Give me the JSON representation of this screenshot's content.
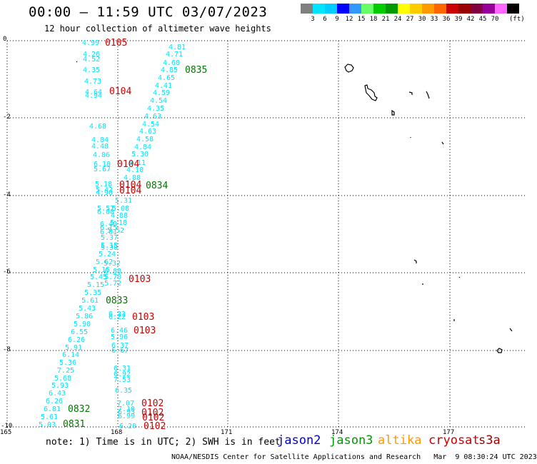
{
  "header": {
    "title": "00:00 – 11:59 UTC 03/07/2023",
    "subtitle": "12 hour collection of altimeter wave heights"
  },
  "colorbar": {
    "colors": [
      "#808080",
      "#00e5ff",
      "#00ccff",
      "#0000ff",
      "#3399ff",
      "#66ff66",
      "#00cc00",
      "#009900",
      "#ffff00",
      "#ffcc00",
      "#ff9900",
      "#ff6600",
      "#cc0000",
      "#990000",
      "#800040",
      "#990099",
      "#ff66ff",
      "#000000"
    ],
    "labels": [
      "3",
      "6",
      "9",
      "12",
      "15",
      "18",
      "21",
      "24",
      "27",
      "30",
      "33",
      "36",
      "39",
      "42",
      "45",
      "70"
    ],
    "unit": "(ft)"
  },
  "map": {
    "y_ticks": [
      "0",
      "-2",
      "-4",
      "-6",
      "-8",
      "-10"
    ],
    "x_ticks": [
      "165",
      "168",
      "171",
      "174",
      "177"
    ],
    "labels": [
      {
        "t": "4.99",
        "x": 115,
        "y": 63,
        "c": "#00e5ff"
      },
      {
        "t": "0105",
        "x": 147,
        "y": 64,
        "c": "#cc0000",
        "big": true
      },
      {
        "t": "4.26",
        "x": 116,
        "y": 79,
        "c": "#00e5ff"
      },
      {
        "t": "4.52",
        "x": 116,
        "y": 86,
        "c": "#00e5ff"
      },
      {
        "t": "4.35",
        "x": 116,
        "y": 101,
        "c": "#00e5ff"
      },
      {
        "t": "4.73",
        "x": 118,
        "y": 117,
        "c": "#00e5ff"
      },
      {
        "t": "4.64",
        "x": 119,
        "y": 132,
        "c": "#00e5ff"
      },
      {
        "t": "4.94",
        "x": 119,
        "y": 137,
        "c": "#00e5ff"
      },
      {
        "t": "0104",
        "x": 153,
        "y": 132,
        "c": "#cc0000",
        "big": true
      },
      {
        "t": "4.81",
        "x": 236,
        "y": 69,
        "c": "#00e5ff"
      },
      {
        "t": "4.71",
        "x": 232,
        "y": 79,
        "c": "#00e5ff"
      },
      {
        "t": "4.60",
        "x": 228,
        "y": 91,
        "c": "#00e5ff"
      },
      {
        "t": "4.85",
        "x": 225,
        "y": 101,
        "c": "#00e5ff"
      },
      {
        "t": "0835",
        "x": 259,
        "y": 102,
        "c": "#007700",
        "big": true
      },
      {
        "t": "4.65",
        "x": 221,
        "y": 112,
        "c": "#00e5ff"
      },
      {
        "t": "4.41",
        "x": 217,
        "y": 123,
        "c": "#00e5ff"
      },
      {
        "t": "4.59",
        "x": 214,
        "y": 133,
        "c": "#00e5ff"
      },
      {
        "t": "4.54",
        "x": 210,
        "y": 144,
        "c": "#00e5ff"
      },
      {
        "t": "4.35",
        "x": 206,
        "y": 155,
        "c": "#00e5ff"
      },
      {
        "t": "4.63",
        "x": 202,
        "y": 166,
        "c": "#00e5ff"
      },
      {
        "t": "4.68",
        "x": 125,
        "y": 180,
        "c": "#00e5ff"
      },
      {
        "t": "4.54",
        "x": 199,
        "y": 177,
        "c": "#00e5ff"
      },
      {
        "t": "4.63",
        "x": 195,
        "y": 187,
        "c": "#00e5ff"
      },
      {
        "t": "4.84",
        "x": 128,
        "y": 199,
        "c": "#00e5ff"
      },
      {
        "t": "4.58",
        "x": 191,
        "y": 198,
        "c": "#00e5ff"
      },
      {
        "t": "4.48",
        "x": 128,
        "y": 208,
        "c": "#00e5ff"
      },
      {
        "t": "4.84",
        "x": 188,
        "y": 209,
        "c": "#00e5ff"
      },
      {
        "t": "4.86",
        "x": 130,
        "y": 220,
        "c": "#00e5ff"
      },
      {
        "t": "5.30",
        "x": 184,
        "y": 219,
        "c": "#00e5ff"
      },
      {
        "t": "6.10",
        "x": 131,
        "y": 233,
        "c": "#00e5ff"
      },
      {
        "t": "6.11",
        "x": 180,
        "y": 231,
        "c": "#00e5ff"
      },
      {
        "t": "0104",
        "x": 164,
        "y": 234,
        "c": "#cc0000",
        "big": true
      },
      {
        "t": "5.67",
        "x": 131,
        "y": 240,
        "c": "#00e5ff"
      },
      {
        "t": "4.10",
        "x": 177,
        "y": 241,
        "c": "#00e5ff"
      },
      {
        "t": "4.88",
        "x": 173,
        "y": 252,
        "c": "#00e5ff"
      },
      {
        "t": "5.18",
        "x": 133,
        "y": 261,
        "c": "#00e5ff"
      },
      {
        "t": "0104",
        "x": 167,
        "y": 263,
        "c": "#cc0000",
        "big": true
      },
      {
        "t": "0834",
        "x": 204,
        "y": 264,
        "c": "#007700",
        "big": true
      },
      {
        "t": "5.42",
        "x": 134,
        "y": 269,
        "c": "#00e5ff"
      },
      {
        "t": "4.90",
        "x": 134,
        "y": 273,
        "c": "#00e5ff"
      },
      {
        "t": "0104",
        "x": 167,
        "y": 271,
        "c": "#cc0000",
        "big": true
      },
      {
        "t": "5.31",
        "x": 161,
        "y": 284,
        "c": "#00e5ff"
      },
      {
        "t": "5.51",
        "x": 136,
        "y": 295,
        "c": "#00e5ff"
      },
      {
        "t": "5.08",
        "x": 157,
        "y": 295,
        "c": "#00e5ff"
      },
      {
        "t": "6.00",
        "x": 136,
        "y": 300,
        "c": "#00e5ff"
      },
      {
        "t": "4.88",
        "x": 155,
        "y": 305,
        "c": "#00e5ff"
      },
      {
        "t": "5.18",
        "x": 154,
        "y": 315,
        "c": "#00e5ff"
      },
      {
        "t": "6.40",
        "x": 140,
        "y": 317,
        "c": "#00e5ff"
      },
      {
        "t": "6.15",
        "x": 140,
        "y": 322,
        "c": "#00e5ff"
      },
      {
        "t": "5.52",
        "x": 150,
        "y": 326,
        "c": "#00e5ff"
      },
      {
        "t": "6.01",
        "x": 140,
        "y": 328,
        "c": "#00e5ff"
      },
      {
        "t": "5.37",
        "x": 141,
        "y": 336,
        "c": "#00e5ff"
      },
      {
        "t": "5.15",
        "x": 141,
        "y": 347,
        "c": "#00e5ff"
      },
      {
        "t": "5.30",
        "x": 141,
        "y": 350,
        "c": "#00e5ff"
      },
      {
        "t": "5.24",
        "x": 138,
        "y": 359,
        "c": "#00e5ff"
      },
      {
        "t": "5.62",
        "x": 134,
        "y": 370,
        "c": "#00e5ff"
      },
      {
        "t": "5.32",
        "x": 145,
        "y": 372,
        "c": "#00e5ff"
      },
      {
        "t": "5.15",
        "x": 130,
        "y": 381,
        "c": "#00e5ff"
      },
      {
        "t": "6.88",
        "x": 146,
        "y": 383,
        "c": "#00e5ff"
      },
      {
        "t": "5.45",
        "x": 126,
        "y": 391,
        "c": "#00e5ff"
      },
      {
        "t": "5.70",
        "x": 146,
        "y": 391,
        "c": "#00e5ff"
      },
      {
        "t": "0103",
        "x": 180,
        "y": 395,
        "c": "#cc0000",
        "big": true
      },
      {
        "t": "5.15",
        "x": 122,
        "y": 402,
        "c": "#00e5ff"
      },
      {
        "t": "5.72",
        "x": 146,
        "y": 400,
        "c": "#00e5ff"
      },
      {
        "t": "5.35",
        "x": 118,
        "y": 413,
        "c": "#00e5ff"
      },
      {
        "t": "5.61",
        "x": 114,
        "y": 424,
        "c": "#00e5ff"
      },
      {
        "t": "0833",
        "x": 148,
        "y": 425,
        "c": "#007700",
        "big": true
      },
      {
        "t": "5.43",
        "x": 110,
        "y": 435,
        "c": "#00e5ff"
      },
      {
        "t": "6.33",
        "x": 152,
        "y": 443,
        "c": "#00e5ff"
      },
      {
        "t": "5.86",
        "x": 106,
        "y": 446,
        "c": "#00e5ff"
      },
      {
        "t": "6.22",
        "x": 152,
        "y": 447,
        "c": "#00e5ff"
      },
      {
        "t": "0103",
        "x": 185,
        "y": 448,
        "c": "#cc0000",
        "big": true
      },
      {
        "t": "5.90",
        "x": 103,
        "y": 457,
        "c": "#00e5ff"
      },
      {
        "t": "6.55",
        "x": 99,
        "y": 468,
        "c": "#00e5ff"
      },
      {
        "t": "6.46",
        "x": 155,
        "y": 466,
        "c": "#00e5ff"
      },
      {
        "t": "0103",
        "x": 187,
        "y": 467,
        "c": "#cc0000",
        "big": true
      },
      {
        "t": "6.26",
        "x": 95,
        "y": 479,
        "c": "#00e5ff"
      },
      {
        "t": "5.96",
        "x": 155,
        "y": 475,
        "c": "#00e5ff"
      },
      {
        "t": "5.91",
        "x": 91,
        "y": 490,
        "c": "#00e5ff"
      },
      {
        "t": "6.37",
        "x": 156,
        "y": 487,
        "c": "#00e5ff"
      },
      {
        "t": "6.67",
        "x": 156,
        "y": 494,
        "c": "#00e5ff"
      },
      {
        "t": "6.14",
        "x": 87,
        "y": 500,
        "c": "#00e5ff"
      },
      {
        "t": "5.36",
        "x": 83,
        "y": 511,
        "c": "#00e5ff"
      },
      {
        "t": "6.31",
        "x": 159,
        "y": 519,
        "c": "#00e5ff"
      },
      {
        "t": "7.25",
        "x": 80,
        "y": 522,
        "c": "#00e5ff"
      },
      {
        "t": "6.92",
        "x": 159,
        "y": 527,
        "c": "#00e5ff"
      },
      {
        "t": "5.68",
        "x": 76,
        "y": 533,
        "c": "#00e5ff"
      },
      {
        "t": "7.53",
        "x": 159,
        "y": 535,
        "c": "#00e5ff"
      },
      {
        "t": "5.93",
        "x": 72,
        "y": 543,
        "c": "#00e5ff"
      },
      {
        "t": "6.35",
        "x": 161,
        "y": 550,
        "c": "#00e5ff"
      },
      {
        "t": "6.43",
        "x": 68,
        "y": 554,
        "c": "#00e5ff"
      },
      {
        "t": "6.26",
        "x": 64,
        "y": 565,
        "c": "#00e5ff"
      },
      {
        "t": "7.07",
        "x": 164,
        "y": 568,
        "c": "#00e5ff"
      },
      {
        "t": "0102",
        "x": 198,
        "y": 569,
        "c": "#cc0000",
        "big": true
      },
      {
        "t": "6.81",
        "x": 61,
        "y": 576,
        "c": "#00e5ff"
      },
      {
        "t": "0832",
        "x": 95,
        "y": 577,
        "c": "#007700",
        "big": true
      },
      {
        "t": "7.10",
        "x": 165,
        "y": 576,
        "c": "#00e5ff"
      },
      {
        "t": "6.93",
        "x": 165,
        "y": 580,
        "c": "#00e5ff"
      },
      {
        "t": "0102",
        "x": 198,
        "y": 582,
        "c": "#cc0000",
        "big": true
      },
      {
        "t": "5.61",
        "x": 57,
        "y": 587,
        "c": "#00e5ff"
      },
      {
        "t": "6.99",
        "x": 165,
        "y": 586,
        "c": "#00e5ff"
      },
      {
        "t": "0102",
        "x": 199,
        "y": 589,
        "c": "#cc0000",
        "big": true
      },
      {
        "t": "5.03",
        "x": 54,
        "y": 598,
        "c": "#00e5ff"
      },
      {
        "t": "0831",
        "x": 88,
        "y": 598,
        "c": "#007700",
        "big": true
      },
      {
        "t": "6.20",
        "x": 167,
        "y": 600,
        "c": "#00e5ff"
      },
      {
        "t": "0102",
        "x": 201,
        "y": 601,
        "c": "#cc0000",
        "big": true
      }
    ]
  },
  "footer": {
    "note": "note: 1) Time is in UTC; 2) SWH is in feet",
    "legend": [
      {
        "label": "jason2",
        "color": "#0000cc"
      },
      {
        "label": "jason3",
        "color": "#009900"
      },
      {
        "label": "altika",
        "color": "#ff9900"
      },
      {
        "label": "cryosat",
        "color": "#cc0000"
      },
      {
        "label": "s3a",
        "color": "#990000"
      }
    ],
    "credit": "NOAA/NESDIS Center for Satellite Applications and Research   Mar  9 08:30:24 UTC 2023"
  }
}
